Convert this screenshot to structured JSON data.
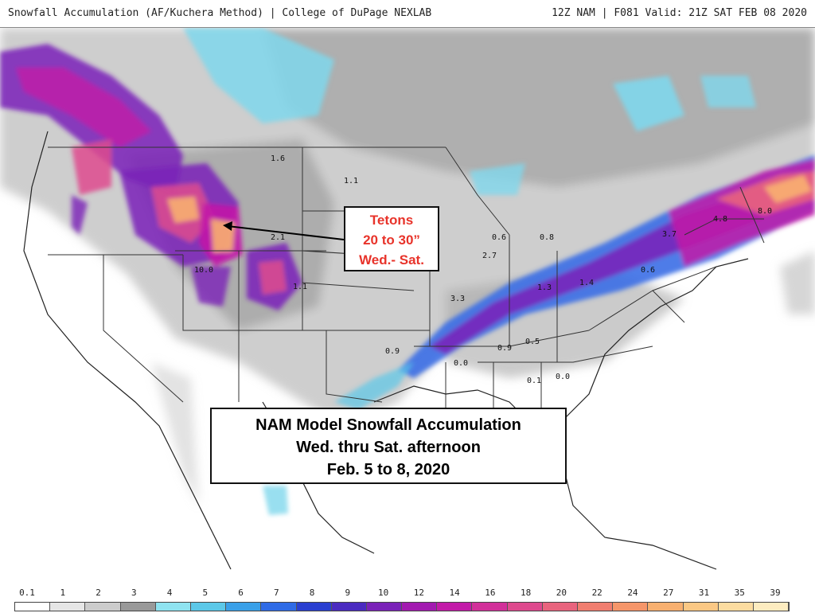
{
  "header": {
    "left": "Snowfall Accumulation (AF/Kuchera Method) | College of DuPage NEXLAB",
    "right": "12Z NAM | F081 Valid: 21Z SAT FEB 08 2020"
  },
  "callouts": {
    "tetons": {
      "line1": "Tetons",
      "line2": "20 to 30”",
      "line3": "Wed.- Sat."
    },
    "summary": {
      "line1": "NAM Model Snowfall Accumulation",
      "line2": "Wed. thru Sat. afternoon",
      "line3": "Feb. 5 to 8, 2020"
    }
  },
  "map_values": [
    "1.6",
    "1.1",
    "2.1",
    "1.1",
    "10.0",
    "0.6",
    "0.8",
    "2.7",
    "1.3",
    "1.4",
    "0.6",
    "3.7",
    "4.8",
    "8.0",
    "3.3",
    "0.9",
    "0.0",
    "0.9",
    "0.5",
    "0.1",
    "0.0"
  ],
  "legend": {
    "labels": [
      "0.1",
      "1",
      "2",
      "3",
      "4",
      "5",
      "6",
      "7",
      "8",
      "9",
      "10",
      "12",
      "14",
      "16",
      "18",
      "20",
      "22",
      "24",
      "27",
      "31",
      "35",
      "39"
    ],
    "colors": [
      "#ffffff",
      "#e6e6e6",
      "#cccccc",
      "#999999",
      "#8fe3f0",
      "#5cc8e8",
      "#3aa0e8",
      "#2f6be6",
      "#2a3fd0",
      "#4b2bc0",
      "#7a22b8",
      "#a21ab0",
      "#c21aa8",
      "#d2309a",
      "#de4a8e",
      "#e8647e",
      "#f07e70",
      "#f5966a",
      "#f8b070",
      "#fbc884",
      "#fcdca0",
      "#fdecc0"
    ]
  }
}
